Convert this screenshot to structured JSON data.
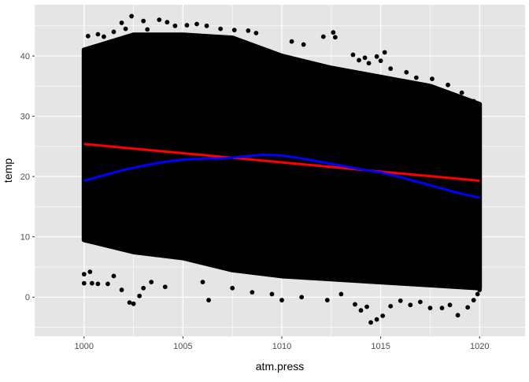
{
  "chart_data": {
    "type": "scatter",
    "title": "",
    "xlabel": "atm.press",
    "ylabel": "temp",
    "xlim": [
      997.5,
      1022.3
    ],
    "ylim": [
      -6.5,
      48.5
    ],
    "x_ticks": [
      1000,
      1005,
      1010,
      1015,
      1020
    ],
    "x_tick_labels": [
      "1000",
      "1005",
      "1010",
      "1015",
      "1020"
    ],
    "y_ticks": [
      0,
      10,
      20,
      30,
      40
    ],
    "y_tick_labels": [
      "0",
      "10",
      "20",
      "30",
      "40"
    ],
    "grid": true,
    "legend": "none",
    "colors": {
      "panel_background": "#e5e5e5",
      "grid": "#ffffff",
      "points": "#000000",
      "linear_fit": "#ff0000",
      "smooth_fit": "#0000ff"
    },
    "point_cloud_envelope": {
      "x": [
        1000,
        1002.5,
        1005,
        1007.5,
        1010,
        1012.5,
        1015,
        1017.5,
        1020
      ],
      "upper": [
        41,
        43.5,
        43.5,
        43,
        40,
        38,
        36.5,
        35,
        32
      ],
      "lower": [
        9.5,
        7.5,
        6.5,
        4.5,
        3.5,
        3,
        2.5,
        2,
        1.5
      ]
    },
    "outlier_points": [
      {
        "x": 1000,
        "y": 2.3
      },
      {
        "x": 1000.4,
        "y": 2.3
      },
      {
        "x": 1000.7,
        "y": 2.2
      },
      {
        "x": 1000,
        "y": 3.8
      },
      {
        "x": 1000.3,
        "y": 4.2
      },
      {
        "x": 1001.2,
        "y": 2.2
      },
      {
        "x": 1001.5,
        "y": 3.5
      },
      {
        "x": 1001.9,
        "y": 1.2
      },
      {
        "x": 1002.3,
        "y": -0.9
      },
      {
        "x": 1002.5,
        "y": -1.1
      },
      {
        "x": 1002.8,
        "y": 0.2
      },
      {
        "x": 1003,
        "y": 1.5
      },
      {
        "x": 1003.4,
        "y": 2.5
      },
      {
        "x": 1004.1,
        "y": 1.7
      },
      {
        "x": 1006,
        "y": 2.5
      },
      {
        "x": 1006.3,
        "y": -0.5
      },
      {
        "x": 1007.5,
        "y": 1.5
      },
      {
        "x": 1008.5,
        "y": 0.8
      },
      {
        "x": 1009.5,
        "y": 0.5
      },
      {
        "x": 1010,
        "y": -0.5
      },
      {
        "x": 1011,
        "y": 0
      },
      {
        "x": 1012.3,
        "y": -0.5
      },
      {
        "x": 1013,
        "y": 0.5
      },
      {
        "x": 1013.7,
        "y": -1.2
      },
      {
        "x": 1014,
        "y": -2.2
      },
      {
        "x": 1014.3,
        "y": -1.6
      },
      {
        "x": 1014.8,
        "y": -3.7
      },
      {
        "x": 1015.1,
        "y": -3.1
      },
      {
        "x": 1014.5,
        "y": -4.2
      },
      {
        "x": 1015.5,
        "y": -1.5
      },
      {
        "x": 1016,
        "y": -0.6
      },
      {
        "x": 1016.5,
        "y": -1.3
      },
      {
        "x": 1017,
        "y": -0.8
      },
      {
        "x": 1017.5,
        "y": -1.8
      },
      {
        "x": 1018.1,
        "y": -1.8
      },
      {
        "x": 1018.5,
        "y": -1.3
      },
      {
        "x": 1018.9,
        "y": -3
      },
      {
        "x": 1019.4,
        "y": -1.7
      },
      {
        "x": 1019.7,
        "y": -0.5
      },
      {
        "x": 1019.9,
        "y": 0.5
      },
      {
        "x": 1020,
        "y": 1.2
      },
      {
        "x": 1000.2,
        "y": 43.3
      },
      {
        "x": 1000.7,
        "y": 43.6
      },
      {
        "x": 1001,
        "y": 43.2
      },
      {
        "x": 1001.5,
        "y": 44
      },
      {
        "x": 1001.9,
        "y": 45.5
      },
      {
        "x": 1002.1,
        "y": 44.5
      },
      {
        "x": 1002.4,
        "y": 46.6
      },
      {
        "x": 1003,
        "y": 45.8
      },
      {
        "x": 1003.2,
        "y": 44.4
      },
      {
        "x": 1003.8,
        "y": 46
      },
      {
        "x": 1004.2,
        "y": 45.6
      },
      {
        "x": 1004.6,
        "y": 45
      },
      {
        "x": 1005.2,
        "y": 45.1
      },
      {
        "x": 1005.7,
        "y": 45.3
      },
      {
        "x": 1006.2,
        "y": 45
      },
      {
        "x": 1006.9,
        "y": 44.5
      },
      {
        "x": 1007.6,
        "y": 44.3
      },
      {
        "x": 1008.3,
        "y": 44.2
      },
      {
        "x": 1008.7,
        "y": 43.8
      },
      {
        "x": 1010.5,
        "y": 42.4
      },
      {
        "x": 1011.1,
        "y": 41.9
      },
      {
        "x": 1012.1,
        "y": 43.2
      },
      {
        "x": 1012.6,
        "y": 43.9
      },
      {
        "x": 1012.7,
        "y": 43.1
      },
      {
        "x": 1013.6,
        "y": 40.2
      },
      {
        "x": 1013.9,
        "y": 39.3
      },
      {
        "x": 1014.2,
        "y": 39.7
      },
      {
        "x": 1014.4,
        "y": 38.8
      },
      {
        "x": 1014.8,
        "y": 39.9
      },
      {
        "x": 1015,
        "y": 39.2
      },
      {
        "x": 1015.2,
        "y": 40.6
      },
      {
        "x": 1015.5,
        "y": 37.9
      },
      {
        "x": 1016.3,
        "y": 37.3
      },
      {
        "x": 1016.8,
        "y": 36.4
      },
      {
        "x": 1017.6,
        "y": 36.2
      },
      {
        "x": 1018.4,
        "y": 35.2
      },
      {
        "x": 1019.1,
        "y": 33.9
      },
      {
        "x": 1019.7,
        "y": 32.5
      }
    ],
    "series": [
      {
        "type": "line",
        "x": [
          1000,
          1020
        ],
        "y": [
          25.4,
          19.3
        ]
      },
      {
        "type": "line",
        "x": [
          1000,
          1001,
          1002,
          1003,
          1004,
          1005,
          1006,
          1007,
          1008,
          1009,
          1010,
          1011,
          1012,
          1013,
          1014,
          1015,
          1016,
          1017,
          1018,
          1019,
          1020
        ],
        "y": [
          19.3,
          20.2,
          21.1,
          21.8,
          22.4,
          22.8,
          23.0,
          23.0,
          23.3,
          23.6,
          23.5,
          23.0,
          22.4,
          21.8,
          21.2,
          20.7,
          19.9,
          19.0,
          18.1,
          17.2,
          16.5
        ]
      }
    ]
  }
}
